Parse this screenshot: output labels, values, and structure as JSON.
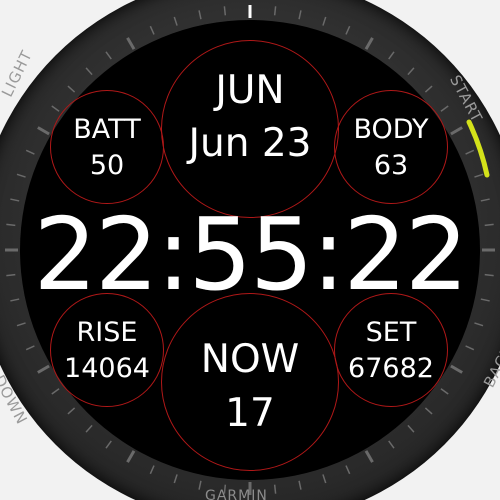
{
  "watch_face": {
    "top_center": {
      "label": "JUN",
      "value": "Jun 23"
    },
    "upper_left": {
      "label": "BATT",
      "value": "50"
    },
    "upper_right": {
      "label": "BODY",
      "value": "63"
    },
    "time": "22:55:22",
    "lower_left": {
      "label": "RISE",
      "value": "14064"
    },
    "lower_right": {
      "label": "SET",
      "value": "67682"
    },
    "bottom_center": {
      "label": "NOW",
      "value": "17"
    }
  },
  "bezel": {
    "buttons": {
      "left_top": "LIGHT",
      "left_bottom": "DOWN",
      "right_top": "START",
      "right_bottom": "BACK"
    },
    "brand": "GARMIN"
  },
  "colors": {
    "ring": "#b01818",
    "accent": "#d4e21a",
    "face_background": "#000000",
    "text": "#ffffff"
  }
}
